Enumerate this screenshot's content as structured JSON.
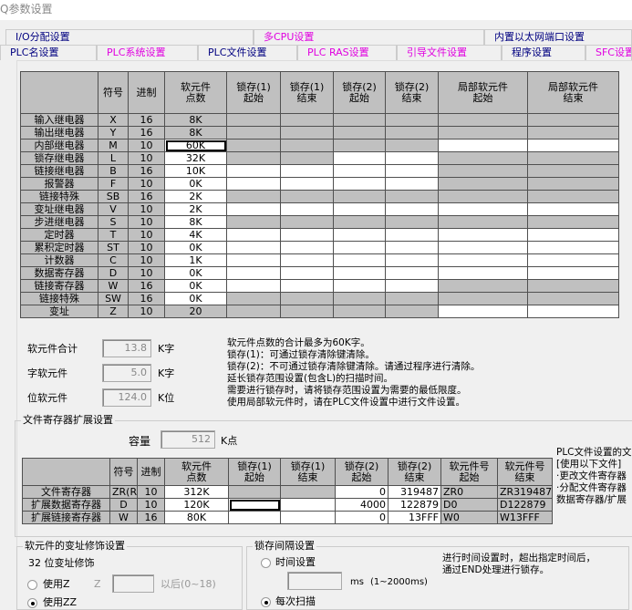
{
  "window": {
    "title": "Q参数设置"
  },
  "tabs_row1": [
    {
      "label": "I/O分配设置",
      "magenta": false
    },
    {
      "label": "多CPU设置",
      "magenta": true
    },
    {
      "label": "内置以太网端口设置",
      "magenta": false
    }
  ],
  "tabs_row2": [
    {
      "label": "PLC名设置",
      "magenta": false
    },
    {
      "label": "PLC系统设置",
      "magenta": true
    },
    {
      "label": "PLC文件设置",
      "magenta": false
    },
    {
      "label": "PLC RAS设置",
      "magenta": true
    },
    {
      "label": "引导文件设置",
      "magenta": true
    },
    {
      "label": "程序设置",
      "magenta": false
    },
    {
      "label": "SFC设置",
      "magenta": true
    }
  ],
  "device_table": {
    "headers": [
      "",
      "符号",
      "进制",
      "软元件\n点数",
      "锁存(1)\n起始",
      "锁存(1)\n结束",
      "锁存(2)\n起始",
      "锁存(2)\n结束",
      "局部软元件\n起始",
      "局部软元件\n结束"
    ],
    "rows": [
      {
        "name": "输入继电器",
        "sym": "X",
        "base": "16",
        "points": "8K",
        "editable": [
          0,
          0,
          0,
          0,
          0,
          0,
          0
        ]
      },
      {
        "name": "输出继电器",
        "sym": "Y",
        "base": "16",
        "points": "8K",
        "editable": [
          0,
          0,
          0,
          0,
          0,
          0,
          0
        ]
      },
      {
        "name": "内部继电器",
        "sym": "M",
        "base": "10",
        "points": "60K",
        "editable": [
          1,
          0,
          0,
          0,
          0,
          1,
          1
        ],
        "focused": true
      },
      {
        "name": "锁存继电器",
        "sym": "L",
        "base": "10",
        "points": "32K",
        "editable": [
          1,
          0,
          0,
          1,
          1,
          0,
          0
        ]
      },
      {
        "name": "链接继电器",
        "sym": "B",
        "base": "16",
        "points": "10K",
        "editable": [
          1,
          1,
          1,
          1,
          1,
          0,
          0
        ]
      },
      {
        "name": "报警器",
        "sym": "F",
        "base": "10",
        "points": "0K",
        "editable": [
          1,
          1,
          1,
          1,
          1,
          0,
          0
        ]
      },
      {
        "name": "链接特殊",
        "sym": "SB",
        "base": "16",
        "points": "2K",
        "editable": [
          1,
          0,
          0,
          0,
          0,
          0,
          0
        ]
      },
      {
        "name": "变址继电器",
        "sym": "V",
        "base": "10",
        "points": "2K",
        "editable": [
          1,
          1,
          1,
          1,
          1,
          1,
          1
        ]
      },
      {
        "name": "步进继电器",
        "sym": "S",
        "base": "10",
        "points": "8K",
        "editable": [
          1,
          0,
          0,
          0,
          0,
          0,
          0
        ]
      },
      {
        "name": "定时器",
        "sym": "T",
        "base": "10",
        "points": "4K",
        "editable": [
          1,
          1,
          1,
          1,
          1,
          1,
          1
        ]
      },
      {
        "name": "累积定时器",
        "sym": "ST",
        "base": "10",
        "points": "0K",
        "editable": [
          1,
          1,
          1,
          1,
          1,
          1,
          1
        ]
      },
      {
        "name": "计数器",
        "sym": "C",
        "base": "10",
        "points": "1K",
        "editable": [
          1,
          1,
          1,
          1,
          1,
          1,
          1
        ]
      },
      {
        "name": "数据寄存器",
        "sym": "D",
        "base": "10",
        "points": "0K",
        "editable": [
          1,
          1,
          1,
          1,
          1,
          1,
          1
        ]
      },
      {
        "name": "链接寄存器",
        "sym": "W",
        "base": "16",
        "points": "0K",
        "editable": [
          1,
          1,
          1,
          1,
          1,
          0,
          0
        ]
      },
      {
        "name": "链接特殊",
        "sym": "SW",
        "base": "16",
        "points": "0K",
        "editable": [
          1,
          0,
          0,
          0,
          0,
          0,
          0
        ]
      },
      {
        "name": "变址",
        "sym": "Z",
        "base": "10",
        "points": "20",
        "editable": [
          0,
          0,
          0,
          0,
          0,
          1,
          1
        ]
      }
    ]
  },
  "totals": {
    "total_label": "软元件合计",
    "total_value": "13.8",
    "total_unit": "K字",
    "word_label": "字软元件",
    "word_value": "5.0",
    "word_unit": "K字",
    "bit_label": "位软元件",
    "bit_value": "124.0",
    "bit_unit": "K位"
  },
  "notes": [
    "软元件点数的合计最多为60K字。",
    "锁存(1)：可通过锁存清除键清除。",
    "锁存(2)：不可通过锁存清除键清除。请通过程序进行清除。",
    "延长锁存范围设置(包含L)的扫描时间。",
    "需要进行锁存时，请将锁存范围设置为需要的最低限度。",
    "使用局部软元件时，请在PLC文件设置中进行文件设置。"
  ],
  "file_register": {
    "group_title": "文件寄存器扩展设置",
    "capacity_label": "容量",
    "capacity_value": "512",
    "capacity_unit": "K点",
    "headers": [
      "",
      "符号",
      "进制",
      "软元件\n点数",
      "锁存(1)\n起始",
      "锁存(1)\n结束",
      "锁存(2)\n起始",
      "锁存(2)\n结束",
      "软元件号\n起始",
      "软元件号\n结束"
    ],
    "rows": [
      {
        "name": "文件寄存器",
        "sym": "ZR(R)",
        "base": "10",
        "points": "312K",
        "l1s": "",
        "l1e": "",
        "l2s": "0",
        "l2e": "319487",
        "start": "ZR0",
        "end": "ZR319487",
        "l1_editable": false
      },
      {
        "name": "扩展数据寄存器",
        "sym": "D",
        "base": "10",
        "points": "120K",
        "l1s": "",
        "l1e": "",
        "l2s": "4000",
        "l2e": "122879",
        "start": "D0",
        "end": "D122879",
        "l1_editable": true,
        "focused": true
      },
      {
        "name": "扩展链接寄存器",
        "sym": "W",
        "base": "16",
        "points": "80K",
        "l1s": "",
        "l1e": "",
        "l2s": "0",
        "l2e": "13FFF",
        "start": "W0",
        "end": "W13FFF",
        "l1_editable": true
      }
    ],
    "side_note": [
      "PLC文件设置的文",
      "[使用以下文件]",
      "·更改文件寄存器",
      "·分配文件寄存器",
      "数据寄存器/扩展"
    ]
  },
  "index_mod": {
    "group_title": "软元件的变址修饰设置",
    "subtitle": "32 位变址修饰",
    "opt1": "使用Z",
    "z_label": "Z",
    "z_value": "",
    "after_label": "以后(0~18)",
    "opt2": "使用ZZ",
    "selected": "使用ZZ"
  },
  "latch_interval": {
    "group_title": "锁存间隔设置",
    "opt1": "时间设置",
    "ms_value": "",
    "ms_label": "ms",
    "range_label": "(1~2000ms)",
    "opt2": "每次扫描",
    "selected": "每次扫描",
    "note": [
      "进行时间设置时，超出指定时间后，",
      "通过END处理进行锁存。"
    ]
  }
}
